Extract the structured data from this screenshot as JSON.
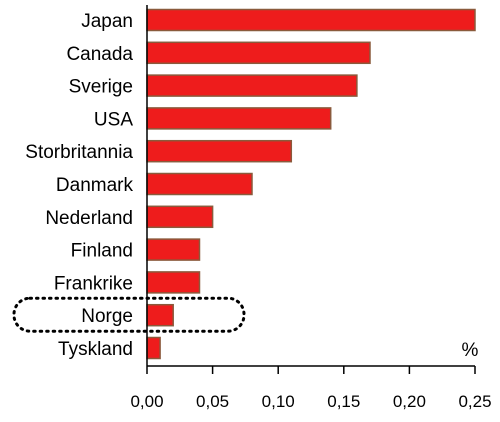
{
  "chart_data": {
    "type": "bar",
    "orientation": "horizontal",
    "categories": [
      "Japan",
      "Canada",
      "Sverige",
      "USA",
      "Storbritannia",
      "Danmark",
      "Nederland",
      "Finland",
      "Frankrike",
      "Norge",
      "Tyskland"
    ],
    "values": [
      0.25,
      0.17,
      0.16,
      0.14,
      0.11,
      0.08,
      0.05,
      0.04,
      0.04,
      0.02,
      0.01
    ],
    "xlim": [
      0,
      0.25
    ],
    "xticks": [
      "0,00",
      "0,05",
      "0,10",
      "0,15",
      "0,20",
      "0,25"
    ],
    "unit_label": "%",
    "highlighted_category": "Norge",
    "grid": false,
    "colors": {
      "bar_fill": "#ee1c1c",
      "bar_stroke": "#8a5a3c",
      "axis": "#000000",
      "highlight_outline": "#000000"
    }
  }
}
